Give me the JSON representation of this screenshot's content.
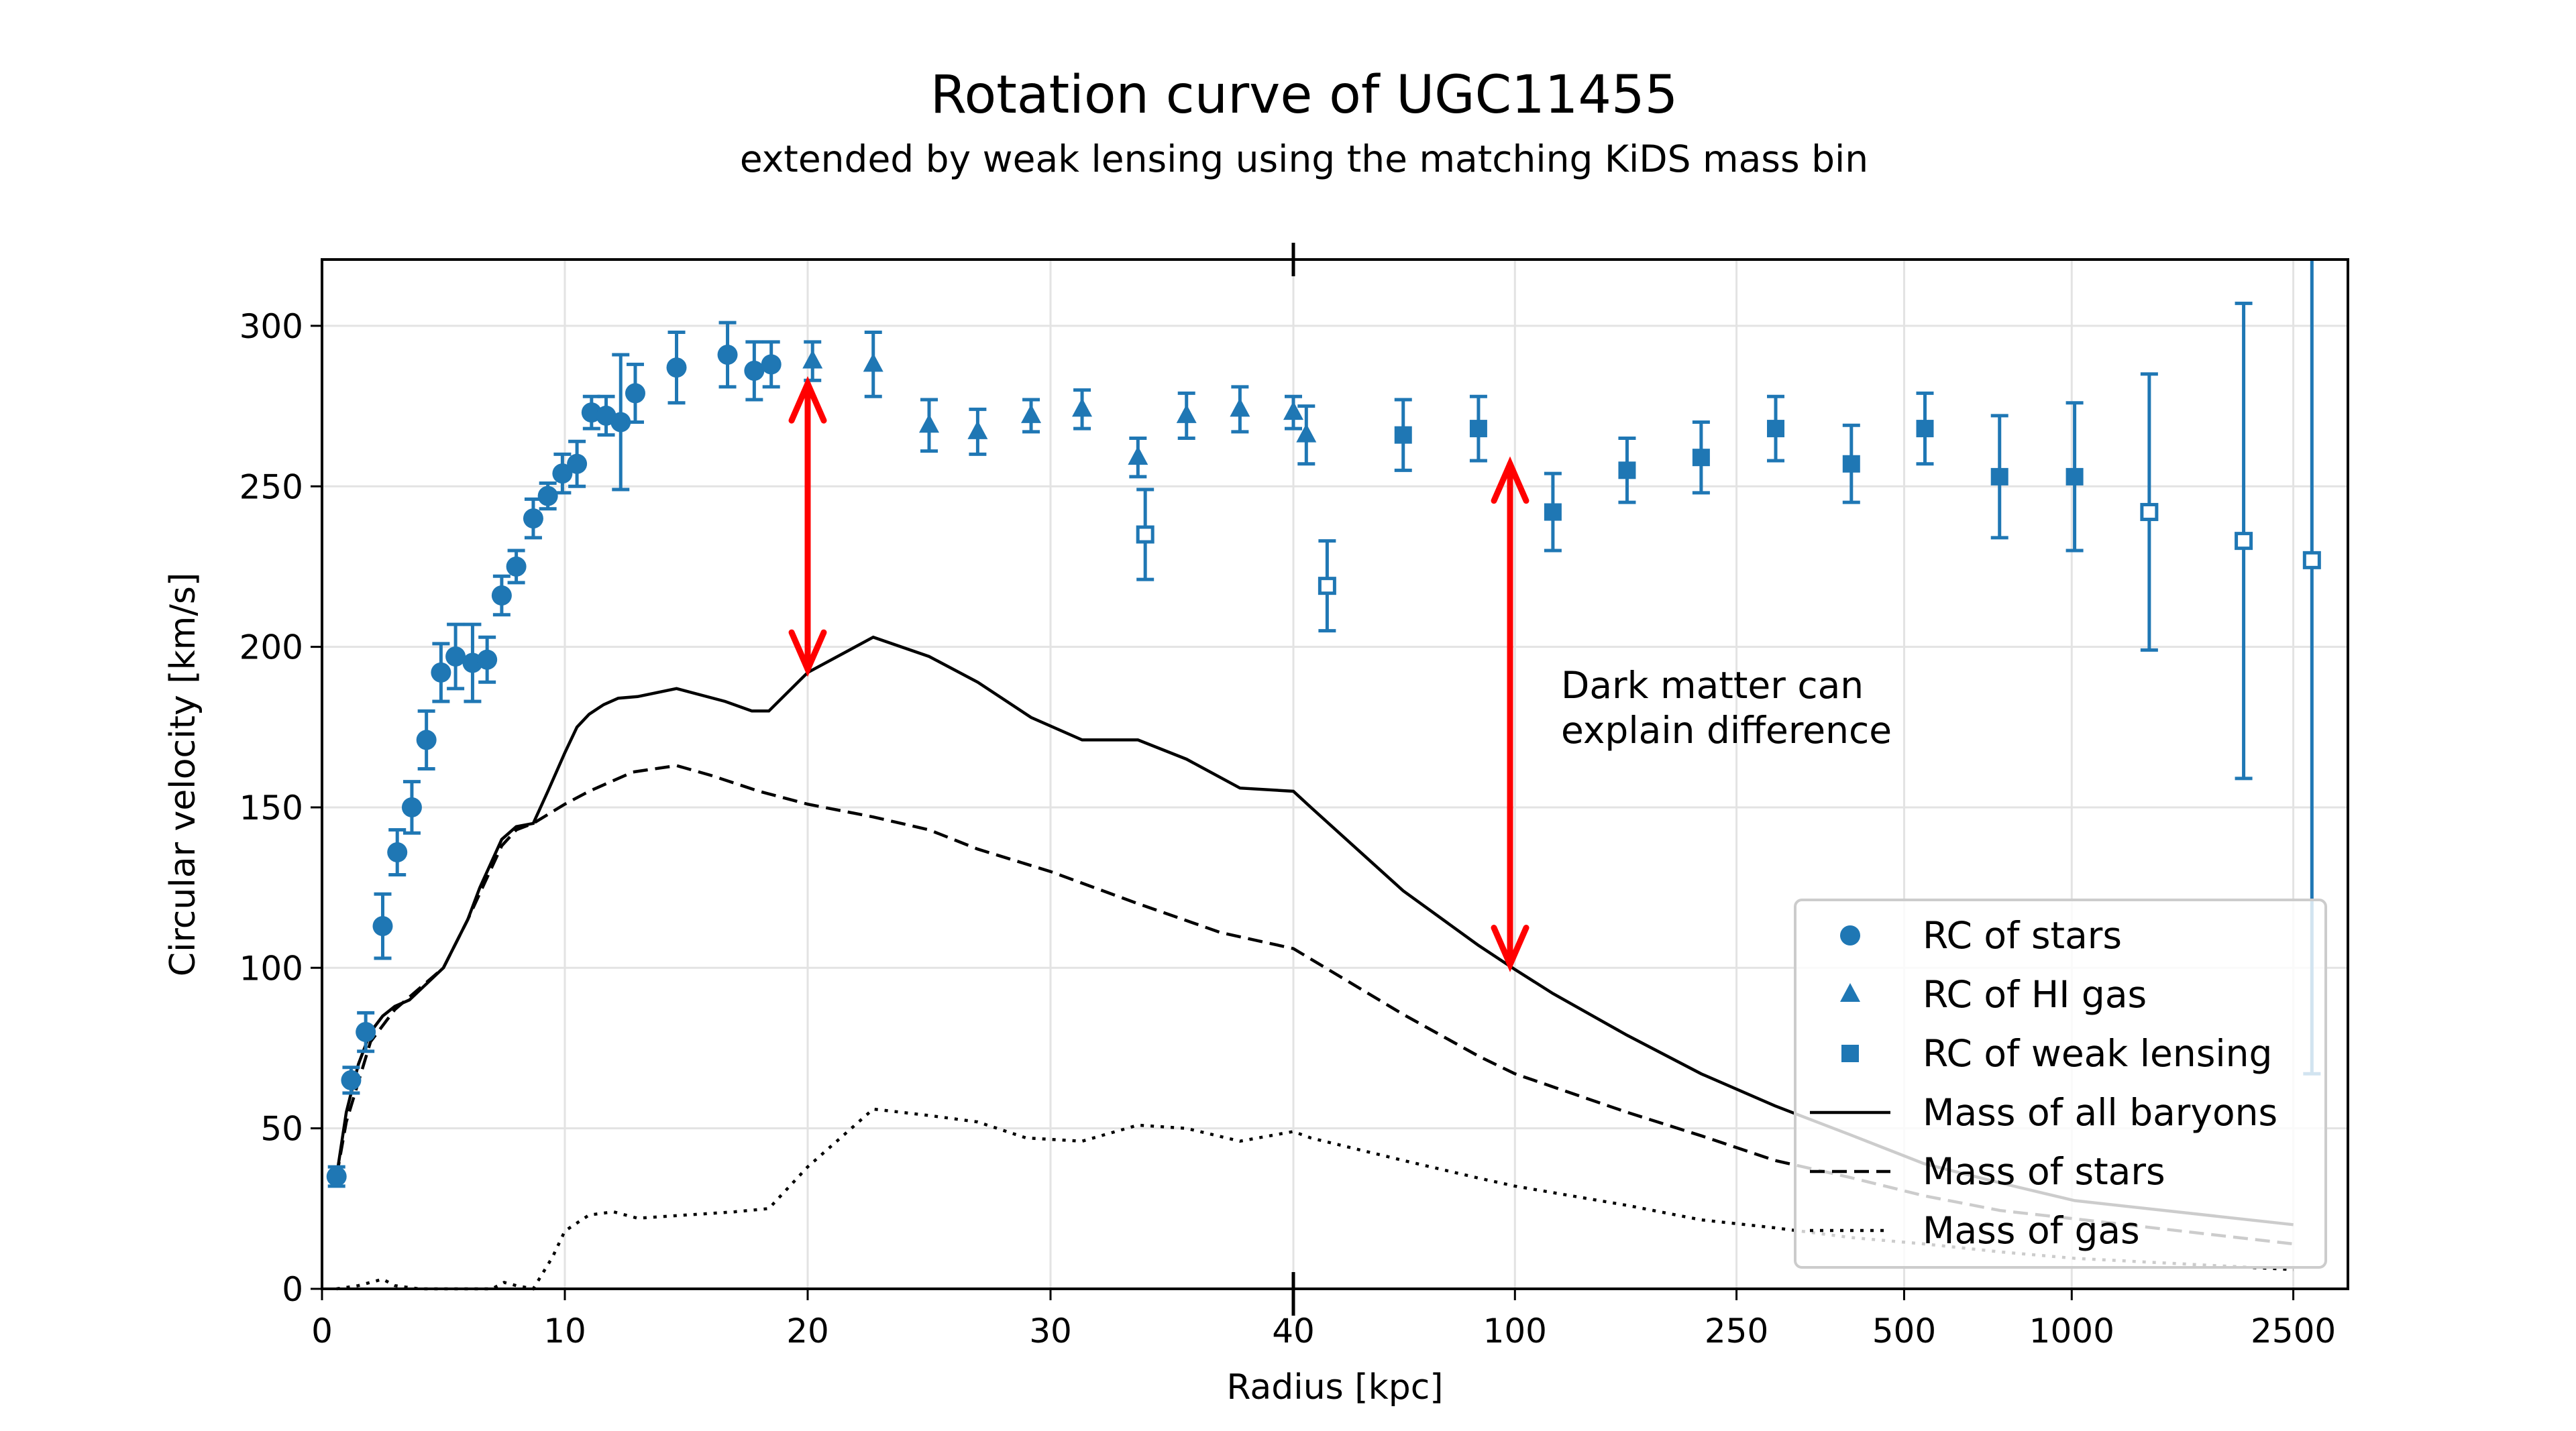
{
  "chart_data": {
    "type": "scatter",
    "title": "Rotation curve of UGC11455",
    "subtitle": "extended by weak lensing using the matching KiDS mass bin",
    "xlabel": "Radius [kpc]",
    "ylabel": "Circular velocity [km/s]",
    "x_scale": "linear from 0 to 40, logarithmic from 40 to 2500",
    "xlim": [
      0,
      3100
    ],
    "ylim": [
      0,
      320
    ],
    "x_ticks": [
      "0",
      "10",
      "20",
      "30",
      "40",
      "100",
      "250",
      "500",
      "1000",
      "2500"
    ],
    "x_tick_values": [
      0,
      10,
      20,
      30,
      40,
      100,
      250,
      500,
      1000,
      2500
    ],
    "y_ticks": [
      "0",
      "50",
      "100",
      "150",
      "200",
      "250",
      "300"
    ],
    "y_tick_values": [
      0,
      50,
      100,
      150,
      200,
      250,
      300
    ],
    "grid": true,
    "legend_position": "bottom-right",
    "colors": {
      "data": "#1f77b4",
      "model": "#000000",
      "annotation": "#ff0000"
    },
    "series": [
      {
        "name": "RC of stars",
        "marker": "circle",
        "points": [
          [
            0.6,
            35,
            3
          ],
          [
            1.2,
            65,
            4
          ],
          [
            1.8,
            80,
            6
          ],
          [
            2.5,
            113,
            10
          ],
          [
            3.1,
            136,
            7
          ],
          [
            3.7,
            150,
            8
          ],
          [
            4.3,
            171,
            9
          ],
          [
            4.9,
            192,
            9
          ],
          [
            5.5,
            197,
            10
          ],
          [
            6.2,
            195,
            12
          ],
          [
            6.8,
            196,
            7
          ],
          [
            7.4,
            216,
            6
          ],
          [
            8.0,
            225,
            5
          ],
          [
            8.7,
            240,
            6
          ],
          [
            9.3,
            247,
            4
          ],
          [
            9.9,
            254,
            6
          ],
          [
            10.5,
            257,
            7
          ],
          [
            11.1,
            273,
            5
          ],
          [
            11.7,
            272,
            6
          ],
          [
            12.3,
            270,
            21
          ],
          [
            12.9,
            279,
            9
          ],
          [
            14.6,
            287,
            11
          ],
          [
            16.7,
            291,
            10
          ],
          [
            17.8,
            286,
            9
          ],
          [
            18.5,
            288,
            7
          ]
        ]
      },
      {
        "name": "RC of HI gas",
        "marker": "triangle",
        "points": [
          [
            20.2,
            289,
            6
          ],
          [
            22.7,
            288,
            10
          ],
          [
            25.0,
            269,
            8
          ],
          [
            27.0,
            267,
            7
          ],
          [
            29.2,
            272,
            5
          ],
          [
            31.3,
            274,
            6
          ],
          [
            33.6,
            259,
            6
          ],
          [
            35.6,
            272,
            7
          ],
          [
            37.8,
            274,
            7
          ],
          [
            40.0,
            273,
            5
          ],
          [
            42.2,
            266,
            9
          ]
        ]
      },
      {
        "name": "",
        "marker": "open-square",
        "points": [
          [
            33.9,
            235,
            14
          ],
          [
            46,
            219,
            14
          ],
          [
            1378,
            242,
            43
          ],
          [
            2036,
            233,
            74
          ],
          [
            2700,
            227,
            160
          ]
        ]
      },
      {
        "name": "RC of weak lensing",
        "marker": "square",
        "points": [
          [
            63,
            266,
            11
          ],
          [
            86,
            268,
            10
          ],
          [
            117,
            242,
            12
          ],
          [
            159,
            255,
            10
          ],
          [
            216,
            259,
            11
          ],
          [
            294,
            268,
            10
          ],
          [
            402,
            257,
            12
          ],
          [
            545,
            268,
            11
          ],
          [
            742,
            253,
            19
          ],
          [
            1012,
            253,
            23
          ]
        ]
      },
      {
        "name": "Mass of all baryons",
        "line": "solid",
        "points": [
          [
            0.6,
            35
          ],
          [
            1,
            55
          ],
          [
            1.5,
            70
          ],
          [
            2,
            80
          ],
          [
            2.5,
            85
          ],
          [
            3,
            88
          ],
          [
            3.6,
            90
          ],
          [
            5,
            100
          ],
          [
            6,
            115
          ],
          [
            6.5,
            125
          ],
          [
            7.4,
            140
          ],
          [
            8,
            144
          ],
          [
            8.7,
            145
          ],
          [
            9.3,
            155
          ],
          [
            10,
            167
          ],
          [
            10.5,
            175
          ],
          [
            11,
            179
          ],
          [
            11.6,
            182
          ],
          [
            12.2,
            184
          ],
          [
            13,
            184.5
          ],
          [
            14.6,
            187
          ],
          [
            16.6,
            183
          ],
          [
            17.7,
            180
          ],
          [
            18.4,
            180
          ],
          [
            20,
            192
          ],
          [
            22.7,
            203
          ],
          [
            25,
            197
          ],
          [
            27,
            189
          ],
          [
            29.2,
            178
          ],
          [
            31.3,
            171
          ],
          [
            33.6,
            171
          ],
          [
            35.6,
            165
          ],
          [
            37.8,
            156
          ],
          [
            40,
            155
          ],
          [
            43,
            150
          ],
          [
            63,
            124
          ],
          [
            86,
            107
          ],
          [
            100,
            99.5
          ],
          [
            117,
            92
          ],
          [
            159,
            79
          ],
          [
            216,
            67
          ],
          [
            293,
            57
          ],
          [
            400,
            48
          ],
          [
            543,
            39
          ],
          [
            744,
            33
          ],
          [
            1012,
            27.5
          ],
          [
            2500,
            20
          ]
        ]
      },
      {
        "name": "Mass of stars",
        "line": "dashed",
        "points": [
          [
            0.6,
            35
          ],
          [
            1,
            52
          ],
          [
            2,
            77
          ],
          [
            3,
            87
          ],
          [
            5,
            100
          ],
          [
            6,
            115
          ],
          [
            7.4,
            138
          ],
          [
            8,
            143
          ],
          [
            8.7,
            145
          ],
          [
            10,
            151
          ],
          [
            11,
            155
          ],
          [
            12.8,
            161
          ],
          [
            14.6,
            163
          ],
          [
            16,
            160
          ],
          [
            18,
            155
          ],
          [
            20,
            151
          ],
          [
            22.7,
            147
          ],
          [
            25,
            143
          ],
          [
            27,
            137
          ],
          [
            30,
            130
          ],
          [
            33.6,
            120
          ],
          [
            37,
            111
          ],
          [
            40,
            106
          ],
          [
            63,
            85.5
          ],
          [
            86,
            72.5
          ],
          [
            100,
            67
          ],
          [
            159,
            55
          ],
          [
            216,
            47.7
          ],
          [
            293,
            40
          ],
          [
            400,
            34.7
          ],
          [
            543,
            29
          ],
          [
            744,
            24.4
          ],
          [
            1012,
            21.8
          ],
          [
            2500,
            14
          ]
        ]
      },
      {
        "name": "Mass of gas",
        "line": "dotted",
        "points": [
          [
            0.6,
            0
          ],
          [
            1.5,
            1
          ],
          [
            2.5,
            3
          ],
          [
            3,
            1
          ],
          [
            4,
            0
          ],
          [
            7,
            0
          ],
          [
            7.5,
            2
          ],
          [
            8,
            1
          ],
          [
            8.7,
            0
          ],
          [
            9.5,
            10
          ],
          [
            10,
            18
          ],
          [
            11,
            23
          ],
          [
            12,
            24
          ],
          [
            13,
            22
          ],
          [
            15,
            23
          ],
          [
            17,
            24
          ],
          [
            18.4,
            25
          ],
          [
            20,
            38
          ],
          [
            22.7,
            56
          ],
          [
            25,
            54
          ],
          [
            27,
            52
          ],
          [
            29,
            47
          ],
          [
            31.3,
            46
          ],
          [
            33.6,
            51
          ],
          [
            35.6,
            50
          ],
          [
            37.8,
            46
          ],
          [
            40,
            49
          ],
          [
            43,
            47
          ],
          [
            63,
            40
          ],
          [
            86,
            34.5
          ],
          [
            100,
            32
          ],
          [
            159,
            26
          ],
          [
            216,
            21.5
          ],
          [
            293,
            19
          ],
          [
            400,
            16
          ],
          [
            543,
            14
          ],
          [
            744,
            11.5
          ],
          [
            1012,
            9.5
          ],
          [
            2500,
            6
          ]
        ]
      }
    ],
    "annotations": {
      "text_lines": [
        "Dark matter can",
        "explain difference"
      ],
      "arrows": [
        {
          "x": 20,
          "from": 193,
          "to": 282
        },
        {
          "x": 98,
          "from": 101,
          "to": 257
        }
      ]
    },
    "legend": [
      "RC of stars",
      "RC of HI gas",
      "RC of weak lensing",
      "Mass of all baryons",
      "Mass of stars",
      "Mass of gas"
    ]
  }
}
